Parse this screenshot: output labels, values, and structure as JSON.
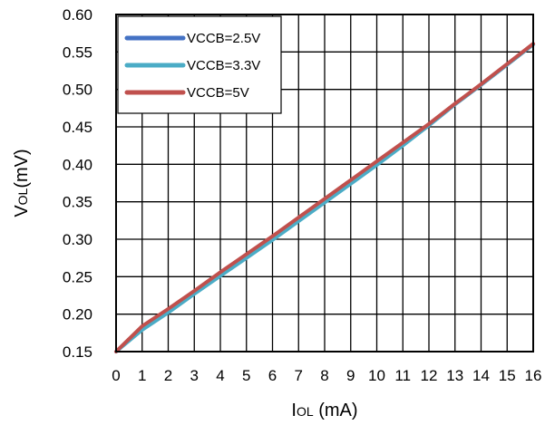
{
  "chart_data": {
    "type": "line",
    "xlabel": {
      "main": "I",
      "sub": "OL",
      "tail": " (mA)"
    },
    "ylabel": {
      "main": "V",
      "sub": "OL",
      "tail": "(mV)"
    },
    "xlim": [
      0,
      16
    ],
    "ylim": [
      0.15,
      0.6
    ],
    "x_ticks": [
      "0",
      "1",
      "2",
      "3",
      "4",
      "5",
      "6",
      "7",
      "8",
      "9",
      "10",
      "11",
      "12",
      "13",
      "14",
      "15",
      "16"
    ],
    "y_ticks": [
      "0.15",
      "0.20",
      "0.25",
      "0.30",
      "0.35",
      "0.40",
      "0.45",
      "0.50",
      "0.55",
      "0.60"
    ],
    "grid": true,
    "legend_position": "top-left",
    "x": [
      0,
      1,
      2,
      3,
      4,
      5,
      6,
      7,
      8,
      9,
      10,
      11,
      12,
      13,
      14,
      15,
      16
    ],
    "series": [
      {
        "name": "VCCB=2.5V",
        "color": "#4472C4",
        "values": [
          0.15,
          0.18,
          0.203,
          0.228,
          0.252,
          0.276,
          0.3,
          0.325,
          0.35,
          0.375,
          0.4,
          0.426,
          0.452,
          0.48,
          0.506,
          0.533,
          0.56
        ]
      },
      {
        "name": "VCCB=3.3V",
        "color": "#4BACC6",
        "values": [
          0.15,
          0.179,
          0.202,
          0.227,
          0.251,
          0.275,
          0.299,
          0.324,
          0.349,
          0.374,
          0.399,
          0.425,
          0.452,
          0.48,
          0.506,
          0.533,
          0.56
        ]
      },
      {
        "name": "VCCB=5V",
        "color": "#C0504D",
        "values": [
          0.15,
          0.184,
          0.207,
          0.231,
          0.256,
          0.28,
          0.304,
          0.329,
          0.354,
          0.379,
          0.404,
          0.429,
          0.454,
          0.481,
          0.507,
          0.534,
          0.561
        ]
      }
    ]
  }
}
